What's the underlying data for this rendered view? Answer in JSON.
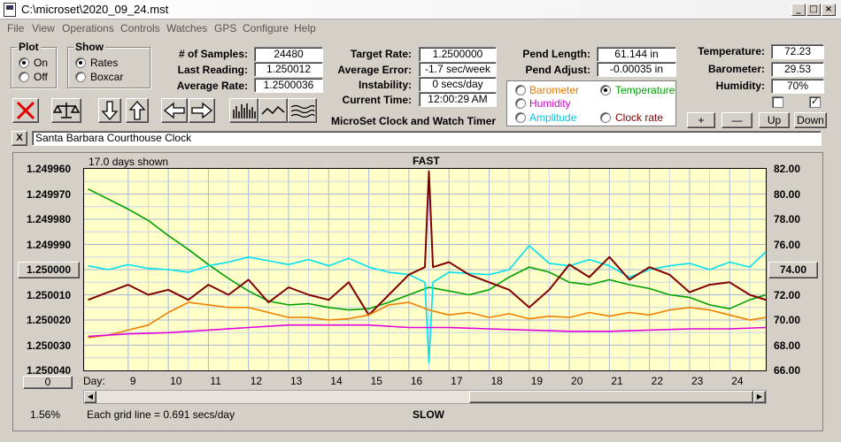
{
  "window": {
    "title": "C:\\microset\\2020_09_24.mst"
  },
  "menu": [
    "File",
    "View",
    "Operations",
    "Controls",
    "Watches",
    "GPS",
    "Configure",
    "Help"
  ],
  "plot_group": {
    "title": "Plot",
    "options": [
      "On",
      "Off"
    ],
    "selected": "On"
  },
  "show_group": {
    "title": "Show",
    "options": [
      "Rates",
      "Boxcar"
    ],
    "selected": "Rates"
  },
  "stats": {
    "samples_label": "# of Samples:",
    "samples": "24480",
    "last_reading_label": "Last Reading:",
    "last_reading": "1.250012",
    "average_rate_label": "Average Rate:",
    "average_rate": "1.2500036",
    "target_rate_label": "Target Rate:",
    "target_rate": "1.2500000",
    "average_error_label": "Average Error:",
    "average_error": "-1.7 sec/week",
    "instability_label": "Instability:",
    "instability": "0 secs/day",
    "current_time_label": "Current Time:",
    "current_time": "12:00:29 AM",
    "pend_length_label": "Pend Length:",
    "pend_length": "61.144 in",
    "pend_adjust_label": "Pend Adjust:",
    "pend_adjust": "-0.00035 in",
    "temperature_label": "Temperature:",
    "temperature": "72.23",
    "barometer_label": "Barometer:",
    "barometer": "29.53",
    "humidity_label": "Humidity:",
    "humidity": "70%"
  },
  "app_caption": "MicroSet Clock and Watch Timer",
  "aux_options": [
    {
      "label": "Barometer",
      "color": "#e87800",
      "selected": false
    },
    {
      "label": "Temperature",
      "color": "#00a000",
      "selected": true
    },
    {
      "label": "Humidity",
      "color": "#d000d0",
      "selected": false
    },
    {
      "label": "Clock rate",
      "color": "#800000",
      "selected": false
    },
    {
      "label": "Amplitude",
      "color": "#00c8e0",
      "selected": false
    }
  ],
  "aux_buttons": {
    "plus": "+",
    "minus": "—",
    "up": "Up",
    "down": "Down"
  },
  "checkboxes": [
    false,
    true
  ],
  "watch_name": "Santa Barbara Courthouse Clock",
  "close_x": "X",
  "chart": {
    "days_shown": "17.0 days shown",
    "fast_label": "FAST",
    "slow_label": "SLOW",
    "grid_note": "Each grid line = 0.691 secs/day",
    "percent": "1.56%",
    "center_button": "1.250000",
    "right_button": "74.00",
    "zero_button": "0",
    "day_label": "Day:"
  },
  "chart_data": {
    "type": "line",
    "x_label": "Day:",
    "x_ticks": [
      9,
      10,
      11,
      12,
      13,
      14,
      15,
      16,
      17,
      18,
      19,
      20,
      21,
      22,
      23,
      24
    ],
    "xlim": [
      7.9,
      24.9
    ],
    "y_left_ticks": [
      "1.249960",
      "1.249970",
      "1.249980",
      "1.249990",
      "1.250000",
      "1.250010",
      "1.250020",
      "1.250030",
      "1.250040"
    ],
    "ylim_left": [
      1.25004,
      1.24996
    ],
    "y_right_ticks": [
      "82.00",
      "80.00",
      "78.00",
      "76.00",
      "74.00",
      "72.00",
      "70.00",
      "68.00",
      "66.00"
    ],
    "ylim_right": [
      66,
      82
    ],
    "grid": true,
    "series": [
      {
        "name": "Temperature",
        "color": "#00a000",
        "x": [
          8,
          8.5,
          9,
          9.5,
          10,
          10.5,
          11,
          11.5,
          12,
          12.5,
          13,
          13.5,
          14,
          14.5,
          15,
          15.5,
          16,
          16.5,
          17,
          17.5,
          18,
          18.5,
          19,
          19.5,
          20,
          20.5,
          21,
          21.5,
          22,
          22.5,
          23,
          23.5,
          24,
          24.5,
          24.9
        ],
        "y": [
          80.4,
          79.6,
          78.8,
          77.9,
          76.7,
          75.6,
          74.4,
          73.3,
          72.3,
          71.5,
          71.2,
          71.3,
          71.0,
          70.8,
          70.9,
          71.4,
          72.0,
          72.6,
          72.3,
          72.0,
          72.4,
          73.4,
          74.2,
          73.8,
          73.0,
          72.8,
          73.2,
          72.8,
          72.5,
          72.0,
          71.8,
          71.2,
          70.9,
          71.6,
          72.0
        ]
      },
      {
        "name": "Amplitude",
        "color": "#00e0f0",
        "x": [
          8,
          8.5,
          9,
          9.5,
          10,
          10.5,
          11,
          11.5,
          12,
          12.5,
          13,
          13.5,
          14,
          14.5,
          15,
          15.5,
          16,
          16.4,
          16.5,
          16.6,
          17,
          17.5,
          18,
          18.5,
          19,
          19.5,
          20,
          20.5,
          21,
          21.5,
          22,
          22.5,
          23,
          23.5,
          24,
          24.5,
          24.9
        ],
        "y": [
          74.3,
          74.0,
          74.4,
          74.1,
          74.0,
          73.8,
          74.3,
          74.6,
          75.0,
          74.7,
          74.4,
          74.8,
          74.3,
          74.9,
          74.2,
          73.8,
          73.6,
          73.0,
          66.6,
          73.0,
          73.8,
          73.7,
          73.6,
          74.0,
          75.9,
          74.5,
          74.3,
          74.8,
          74.3,
          73.4,
          74.0,
          74.3,
          74.5,
          74.0,
          74.6,
          74.2,
          75.4
        ]
      },
      {
        "name": "Clock rate",
        "color": "#800000",
        "x": [
          8,
          8.5,
          9,
          9.5,
          10,
          10.5,
          11,
          11.5,
          12,
          12.5,
          13,
          13.5,
          14,
          14.5,
          15,
          15.5,
          16,
          16.4,
          16.5,
          16.6,
          17,
          17.5,
          18,
          18.5,
          19,
          19.5,
          20,
          20.5,
          21,
          21.5,
          22,
          22.5,
          23,
          23.5,
          24,
          24.5,
          24.9
        ],
        "y": [
          1.250012,
          1.250009,
          1.250006,
          1.25001,
          1.250008,
          1.250012,
          1.250006,
          1.25001,
          1.250004,
          1.250013,
          1.250007,
          1.25001,
          1.250012,
          1.250005,
          1.250018,
          1.25001,
          1.250002,
          1.249999,
          1.249961,
          1.249999,
          1.249997,
          1.250002,
          1.250005,
          1.250008,
          1.250015,
          1.250008,
          1.249998,
          1.250003,
          1.249995,
          1.250004,
          1.249999,
          1.250002,
          1.250009,
          1.250006,
          1.250005,
          1.25001,
          1.250012
        ]
      },
      {
        "name": "Barometer",
        "color": "#f08000",
        "x": [
          8,
          8.5,
          9,
          9.5,
          10,
          10.5,
          11,
          11.5,
          12,
          12.5,
          13,
          13.5,
          14,
          14.5,
          15,
          15.5,
          16,
          16.5,
          17,
          17.5,
          18,
          18.5,
          19,
          19.5,
          20,
          20.5,
          21,
          21.5,
          22,
          22.5,
          23,
          23.5,
          24,
          24.5,
          24.9
        ],
        "y": [
          68.6,
          68.8,
          69.2,
          69.6,
          70.6,
          71.4,
          71.2,
          71.0,
          71.0,
          70.6,
          70.2,
          70.2,
          70.0,
          70.1,
          70.4,
          71.2,
          71.4,
          70.8,
          70.4,
          70.6,
          70.2,
          70.5,
          70.1,
          70.3,
          70.2,
          70.6,
          70.3,
          70.6,
          70.4,
          70.8,
          71.0,
          70.8,
          70.4,
          70.0,
          70.2
        ]
      },
      {
        "name": "Humidity",
        "color": "#e000e0",
        "x": [
          8,
          9,
          10,
          11,
          12,
          13,
          14,
          15,
          16,
          17,
          18,
          19,
          20,
          21,
          22,
          23,
          24,
          24.9
        ],
        "y": [
          68.7,
          68.9,
          69.0,
          69.2,
          69.4,
          69.6,
          69.6,
          69.6,
          69.4,
          69.4,
          69.3,
          69.2,
          69.1,
          69.1,
          69.2,
          69.3,
          69.3,
          69.4
        ]
      }
    ]
  }
}
